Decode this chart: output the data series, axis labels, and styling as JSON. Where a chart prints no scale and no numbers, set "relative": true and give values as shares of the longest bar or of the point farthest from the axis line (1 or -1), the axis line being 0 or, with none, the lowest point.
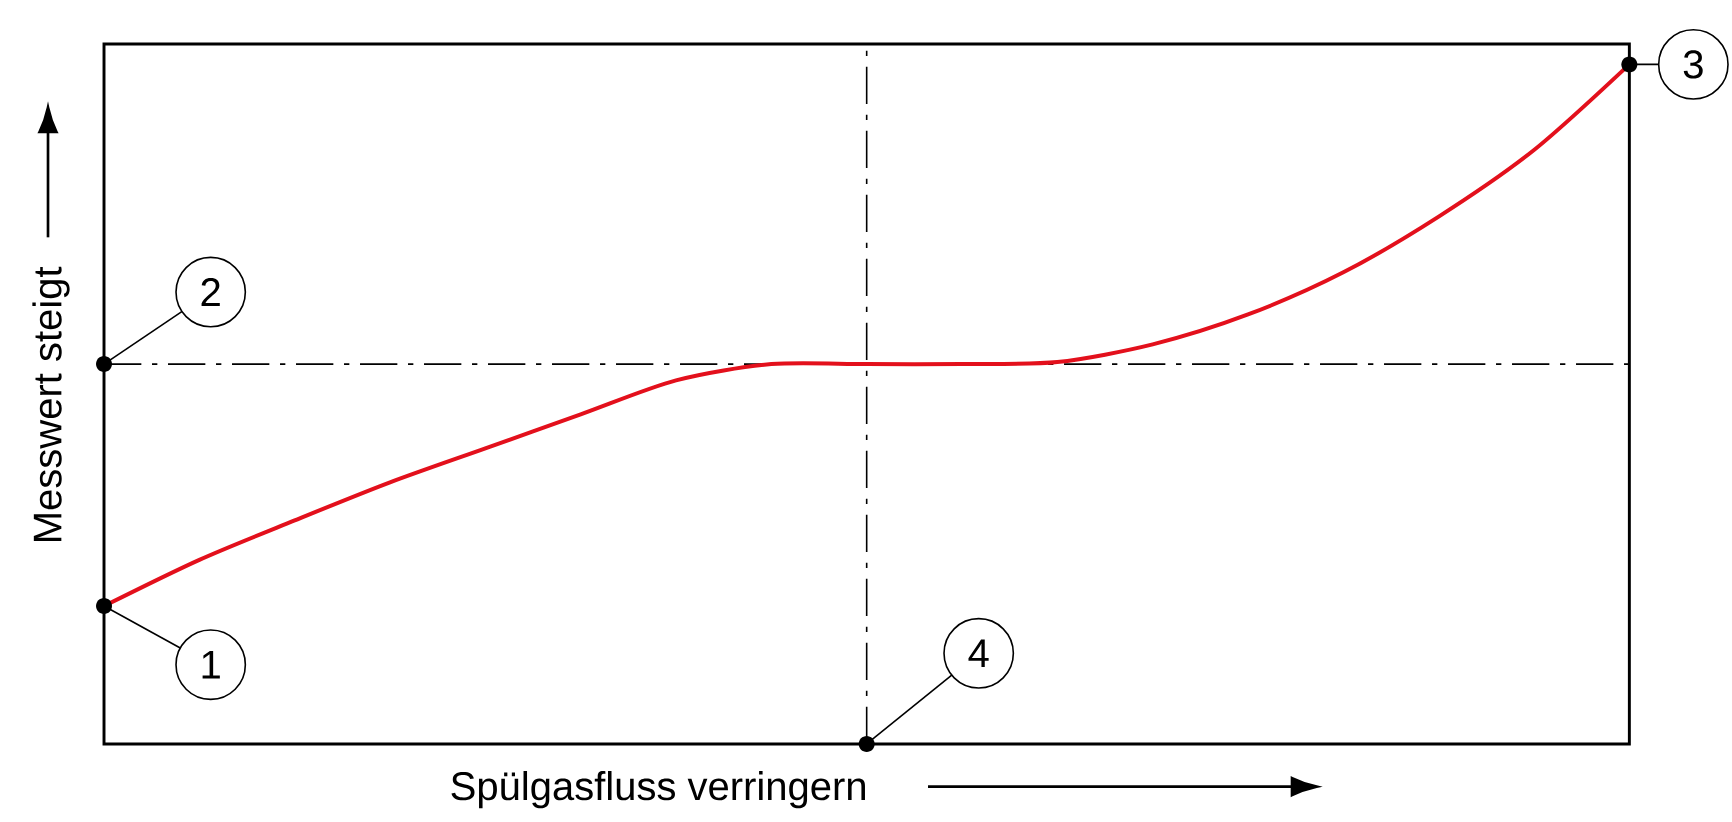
{
  "chart_data": {
    "type": "line",
    "relative": true,
    "xlabel": "Spülgasfluss verringern",
    "ylabel": "Messwert steigt",
    "categories": [
      null,
      null,
      null,
      null,
      null,
      null,
      null,
      null,
      null,
      null,
      null,
      null,
      null,
      null,
      null,
      null,
      null
    ],
    "series": [
      {
        "color": "#e3101c",
        "values": [
          0.203,
          0.271,
          0.329,
          0.385,
          0.435,
          0.485,
          0.535,
          0.559,
          0.559,
          0.559,
          0.562,
          0.588,
          0.632,
          0.694,
          0.776,
          0.874,
          1.0
        ]
      }
    ],
    "ref_lines": [
      {
        "axis": "y",
        "value": 0.559,
        "color": "#000000"
      }
    ],
    "annotations": [
      "1",
      "2",
      "3",
      "4"
    ]
  }
}
